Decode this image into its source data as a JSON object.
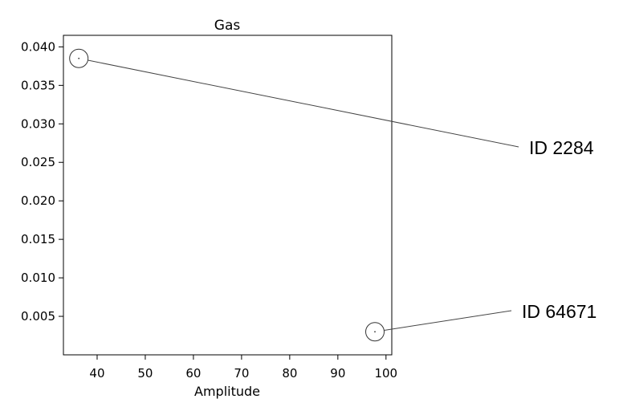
{
  "chart_data": {
    "type": "scatter",
    "title": "Gas",
    "xlabel": "Amplitude",
    "ylabel": "",
    "xlim": [
      33,
      101.2
    ],
    "ylim": [
      0,
      0.0415
    ],
    "xticks": [
      40,
      50,
      60,
      70,
      80,
      90,
      100
    ],
    "yticks": [
      0.005,
      0.01,
      0.015,
      0.02,
      0.025,
      0.03,
      0.035,
      0.04
    ],
    "xtick_labels": [
      "40",
      "50",
      "60",
      "70",
      "80",
      "90",
      "100"
    ],
    "ytick_labels": [
      "0.005",
      "0.010",
      "0.015",
      "0.020",
      "0.025",
      "0.030",
      "0.035",
      "0.040"
    ],
    "grid": false,
    "points": [
      {
        "x": 36.2,
        "y": 0.0385
      },
      {
        "x": 97.7,
        "y": 0.003
      }
    ],
    "annotations": [
      {
        "text": "ID 2284",
        "point_index": 0
      },
      {
        "text": "ID 64671",
        "point_index": 1
      }
    ]
  }
}
